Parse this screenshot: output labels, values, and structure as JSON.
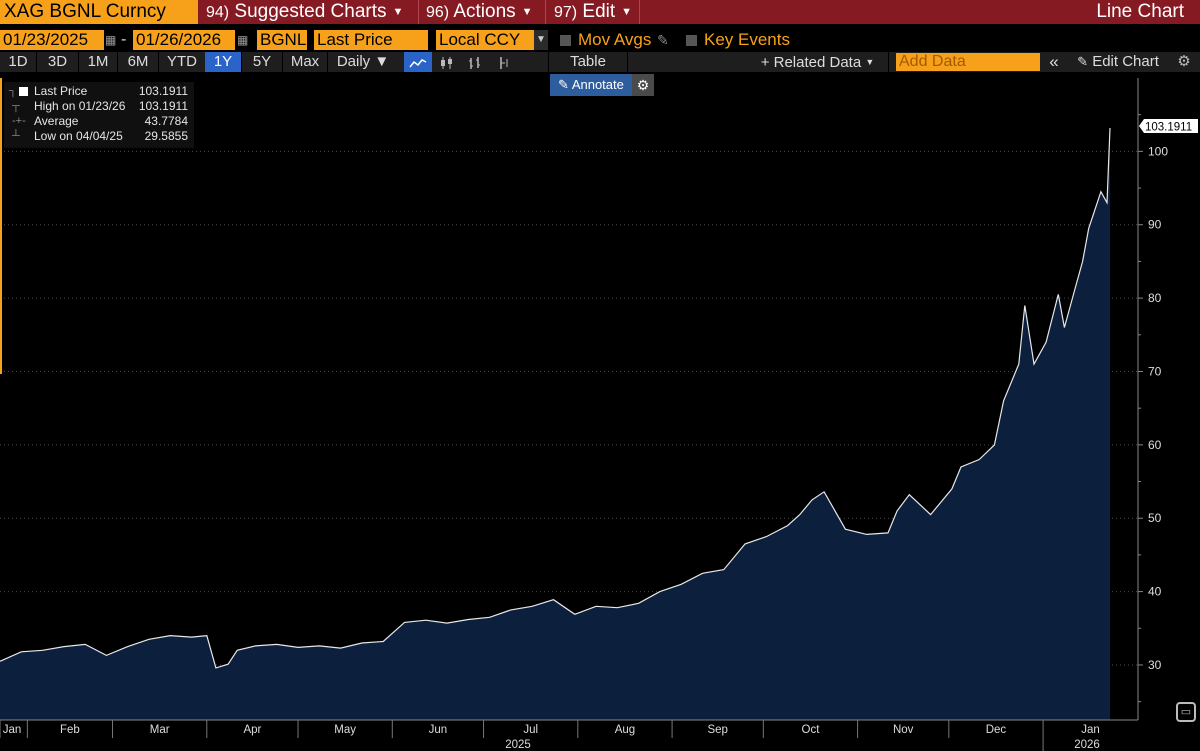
{
  "topbar": {
    "ticker": "XAG BGNL Curncy",
    "menus": [
      {
        "num": "94)",
        "label": "Suggested Charts"
      },
      {
        "num": "96)",
        "label": "Actions"
      },
      {
        "num": "97)",
        "label": "Edit"
      }
    ],
    "chart_type": "Line Chart"
  },
  "controls": {
    "start_date": "01/23/2025",
    "end_date": "01/26/2026",
    "source": "BGNL",
    "field": "Last Price",
    "currency": "Local CCY",
    "mov_avgs": "Mov Avgs",
    "key_events": "Key Events"
  },
  "timebar": {
    "ranges": [
      "1D",
      "3D",
      "1M",
      "6M",
      "YTD",
      "1Y",
      "5Y",
      "Max"
    ],
    "selected_range": "1Y",
    "periodicity": "Daily ▼",
    "table": "Table",
    "related_data": "+ Related Data",
    "add_data_placeholder": "Add Data",
    "edit_chart": "Edit Chart",
    "collapse": "«"
  },
  "annotate": {
    "label": "Annotate"
  },
  "legend": {
    "rows": [
      {
        "label": "Last Price",
        "value": "103.1911"
      },
      {
        "label": "High on 01/23/26",
        "value": "103.1911"
      },
      {
        "label": "Average",
        "value": "43.7784"
      },
      {
        "label": "Low on 04/04/25",
        "value": "29.5855"
      }
    ]
  },
  "colors": {
    "accent_orange": "#f7a11a",
    "menu_red": "#861a23",
    "selected_blue": "#2a64c8",
    "area_fill": "#0c1f3d",
    "line": "#e8e8e8"
  },
  "icons": [
    "calendar-icon",
    "dropdown-arrow-icon",
    "pencil-icon",
    "line-chart-icon",
    "candlestick-icon",
    "bar-chart-icon",
    "gear-icon",
    "chat-icon"
  ],
  "chart_data": {
    "type": "area",
    "y_ticks": [
      "30",
      "40",
      "50",
      "60",
      "70",
      "80",
      "90",
      "100"
    ],
    "ylim": [
      22.5,
      110
    ],
    "last_value_label": "103.1911",
    "x_tick_labels": [
      "Jan",
      "Feb",
      "Mar",
      "Apr",
      "May",
      "Jun",
      "Jul",
      "Aug",
      "Sep",
      "Oct",
      "Nov",
      "Dec",
      "Jan"
    ],
    "year_labels": [
      "2025",
      "2026"
    ],
    "x": [
      "2025-01-23",
      "2025-01-30",
      "2025-02-06",
      "2025-02-13",
      "2025-02-20",
      "2025-02-27",
      "2025-03-06",
      "2025-03-13",
      "2025-03-20",
      "2025-03-27",
      "2025-04-01",
      "2025-04-04",
      "2025-04-08",
      "2025-04-11",
      "2025-04-17",
      "2025-04-24",
      "2025-05-01",
      "2025-05-08",
      "2025-05-15",
      "2025-05-22",
      "2025-05-29",
      "2025-06-05",
      "2025-06-12",
      "2025-06-19",
      "2025-06-26",
      "2025-07-03",
      "2025-07-10",
      "2025-07-17",
      "2025-07-24",
      "2025-07-31",
      "2025-08-07",
      "2025-08-14",
      "2025-08-21",
      "2025-08-28",
      "2025-09-04",
      "2025-09-11",
      "2025-09-18",
      "2025-09-25",
      "2025-10-02",
      "2025-10-09",
      "2025-10-13",
      "2025-10-17",
      "2025-10-21",
      "2025-10-28",
      "2025-11-04",
      "2025-11-11",
      "2025-11-14",
      "2025-11-18",
      "2025-11-25",
      "2025-12-02",
      "2025-12-05",
      "2025-12-11",
      "2025-12-16",
      "2025-12-19",
      "2025-12-24",
      "2025-12-26",
      "2025-12-29",
      "2025-12-31",
      "2026-01-02",
      "2026-01-06",
      "2026-01-08",
      "2026-01-12",
      "2026-01-14",
      "2026-01-16",
      "2026-01-20",
      "2026-01-22",
      "2026-01-23"
    ],
    "values": [
      30.5,
      31.8,
      32.0,
      32.5,
      32.8,
      31.3,
      32.5,
      33.5,
      34.0,
      33.8,
      34.0,
      29.6,
      30.1,
      32.0,
      32.6,
      32.8,
      32.4,
      32.6,
      32.3,
      33.0,
      33.2,
      35.8,
      36.1,
      35.7,
      36.2,
      36.5,
      37.5,
      38.0,
      38.9,
      36.9,
      38.0,
      37.8,
      38.4,
      40.0,
      41.0,
      42.5,
      43.0,
      46.5,
      47.5,
      49.0,
      50.5,
      52.5,
      53.6,
      48.5,
      47.8,
      48.0,
      51.0,
      53.2,
      50.5,
      54.0,
      57.0,
      58.0,
      60.0,
      66.0,
      71.0,
      79.0,
      71.0,
      72.5,
      74.0,
      80.5,
      76.0,
      82.0,
      85.0,
      89.5,
      94.5,
      93.0,
      103.1911
    ]
  }
}
